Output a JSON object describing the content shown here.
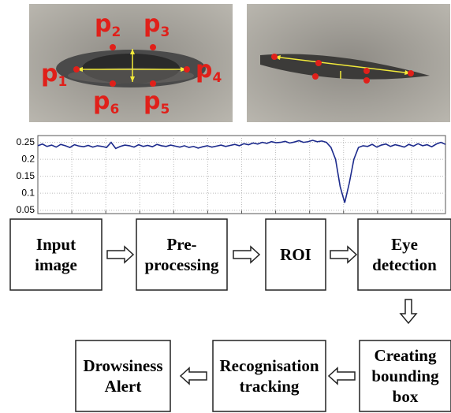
{
  "landmark_labels": [
    {
      "letter": "p",
      "index": "1"
    },
    {
      "letter": "p",
      "index": "2"
    },
    {
      "letter": "p",
      "index": "3"
    },
    {
      "letter": "p",
      "index": "4"
    },
    {
      "letter": "p",
      "index": "5"
    },
    {
      "letter": "p",
      "index": "6"
    }
  ],
  "chart_data": {
    "type": "line",
    "series": [
      {
        "color": "#1c2a8c",
        "values": [
          0.24,
          0.245,
          0.238,
          0.242,
          0.236,
          0.244,
          0.24,
          0.235,
          0.243,
          0.239,
          0.237,
          0.241,
          0.236,
          0.24,
          0.238,
          0.235,
          0.25,
          0.232,
          0.238,
          0.242,
          0.24,
          0.236,
          0.243,
          0.238,
          0.241,
          0.237,
          0.244,
          0.24,
          0.238,
          0.242,
          0.239,
          0.236,
          0.24,
          0.235,
          0.238,
          0.233,
          0.237,
          0.24,
          0.236,
          0.239,
          0.242,
          0.238,
          0.241,
          0.244,
          0.24,
          0.246,
          0.243,
          0.248,
          0.245,
          0.25,
          0.247,
          0.252,
          0.249,
          0.25,
          0.253,
          0.248,
          0.251,
          0.255,
          0.25,
          0.252,
          0.256,
          0.252,
          0.254,
          0.25,
          0.235,
          0.2,
          0.12,
          0.072,
          0.13,
          0.2,
          0.235,
          0.24,
          0.238,
          0.244,
          0.236,
          0.242,
          0.245,
          0.238,
          0.243,
          0.24,
          0.236,
          0.244,
          0.239,
          0.246,
          0.24,
          0.243,
          0.237,
          0.245,
          0.25,
          0.244
        ]
      }
    ],
    "ylim": [
      0.04,
      0.27
    ],
    "yticks": [
      0.05,
      0.1,
      0.15,
      0.2,
      0.25
    ],
    "grid": true
  },
  "nodes": [
    {
      "lines": [
        "Input",
        "image"
      ]
    },
    {
      "lines": [
        "Pre-",
        "processing"
      ]
    },
    {
      "lines": [
        "ROI"
      ]
    },
    {
      "lines": [
        "Eye",
        "detection"
      ]
    },
    {
      "lines": [
        "Creating",
        "bounding",
        "box"
      ]
    },
    {
      "lines": [
        "Recognisation",
        "tracking"
      ]
    },
    {
      "lines": [
        "Drowsiness",
        "Alert"
      ]
    }
  ]
}
